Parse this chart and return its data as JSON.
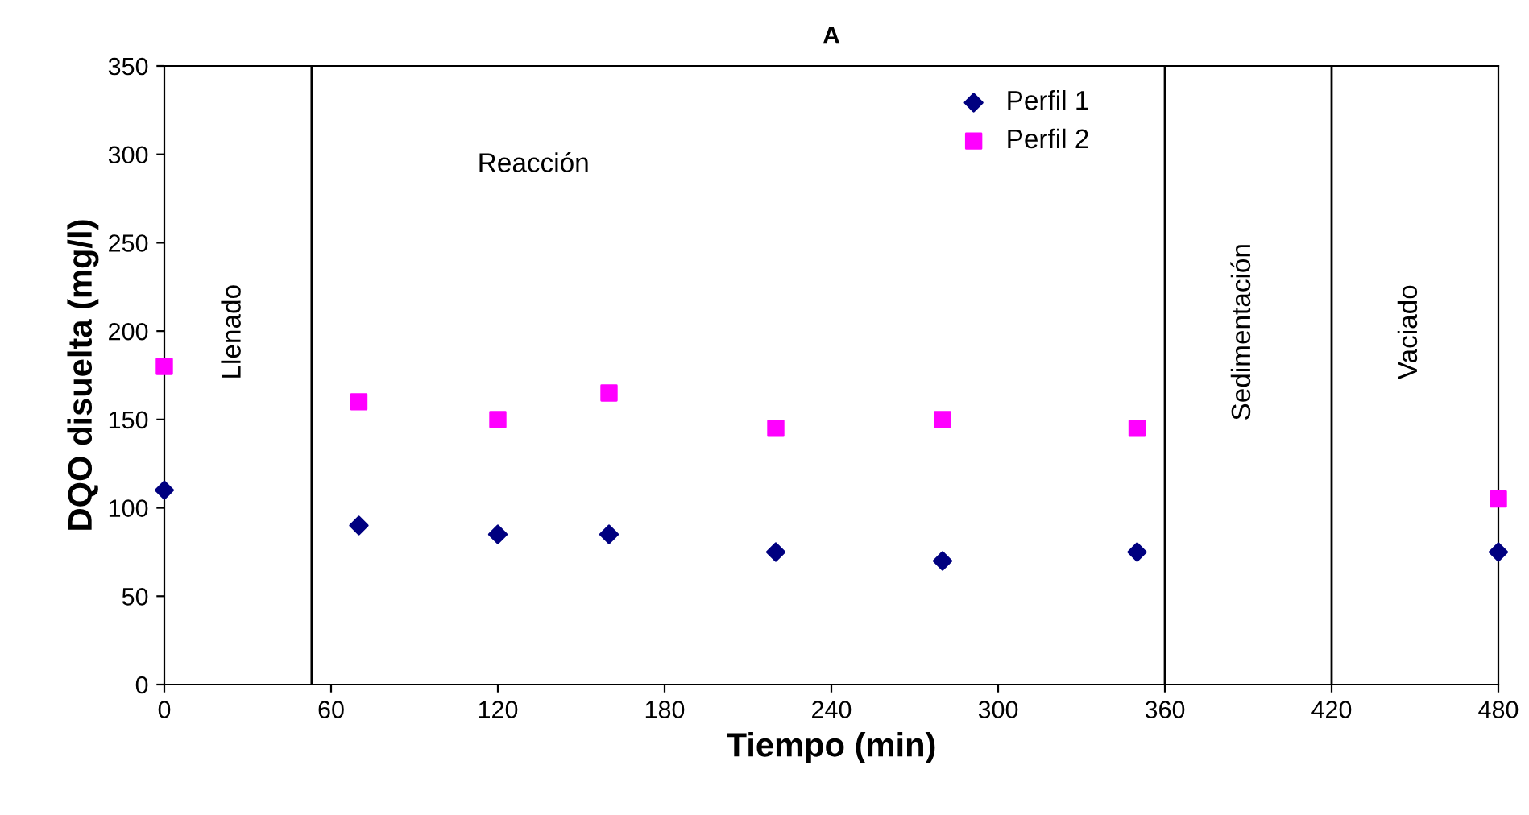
{
  "chart_data": {
    "type": "scatter",
    "title": "A",
    "xlabel": "Tiempo (min)",
    "ylabel": "DQO disuelta (mg/l)",
    "x": [
      0,
      70,
      120,
      160,
      220,
      280,
      350,
      480
    ],
    "series": [
      {
        "name": "Perfil 1",
        "color": "#000080",
        "marker": "diamond",
        "values": [
          110,
          90,
          85,
          85,
          75,
          70,
          75,
          75
        ]
      },
      {
        "name": "Perfil 2",
        "color": "#ff00ff",
        "marker": "square",
        "values": [
          180,
          160,
          150,
          165,
          145,
          150,
          145,
          105
        ]
      }
    ],
    "xlim": [
      0,
      480
    ],
    "xticks": [
      0,
      60,
      120,
      180,
      240,
      300,
      360,
      420,
      480
    ],
    "ylim": [
      0,
      350
    ],
    "yticks": [
      0,
      50,
      100,
      150,
      200,
      250,
      300,
      350
    ],
    "ref_lines": [
      {
        "axis": "x",
        "value": 53,
        "color": "#000000"
      },
      {
        "axis": "x",
        "value": 360,
        "color": "#000000"
      },
      {
        "axis": "x",
        "value": 420,
        "color": "#000000"
      }
    ],
    "annotations": [
      "Llenado",
      "Reacción",
      "Sedimentación",
      "Vaciado"
    ],
    "grid": false,
    "legend": "top"
  }
}
